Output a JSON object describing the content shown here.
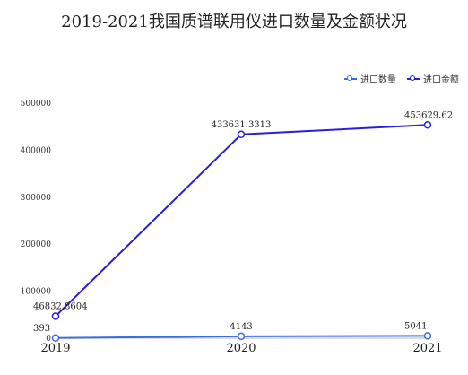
{
  "chart_data": {
    "type": "line",
    "title": "2019-2021我国质谱联用仪进口数量及金额状况",
    "categories": [
      "2019",
      "2020",
      "2021"
    ],
    "yticks": [
      0,
      100000,
      200000,
      300000,
      400000,
      500000
    ],
    "ylim": [
      0,
      500000
    ],
    "legend_position": "top-right",
    "series": [
      {
        "name": "进口数量",
        "values": [
          393,
          4143,
          5041
        ],
        "labels": [
          "393",
          "4143",
          "5041"
        ],
        "color": "#3b6be0"
      },
      {
        "name": "进口金额",
        "values": [
          46832.8604,
          433631.3313,
          453629.62
        ],
        "labels": [
          "46832.8604",
          "433631.3313",
          "453629.62"
        ],
        "color": "#2a1fd6"
      }
    ]
  }
}
